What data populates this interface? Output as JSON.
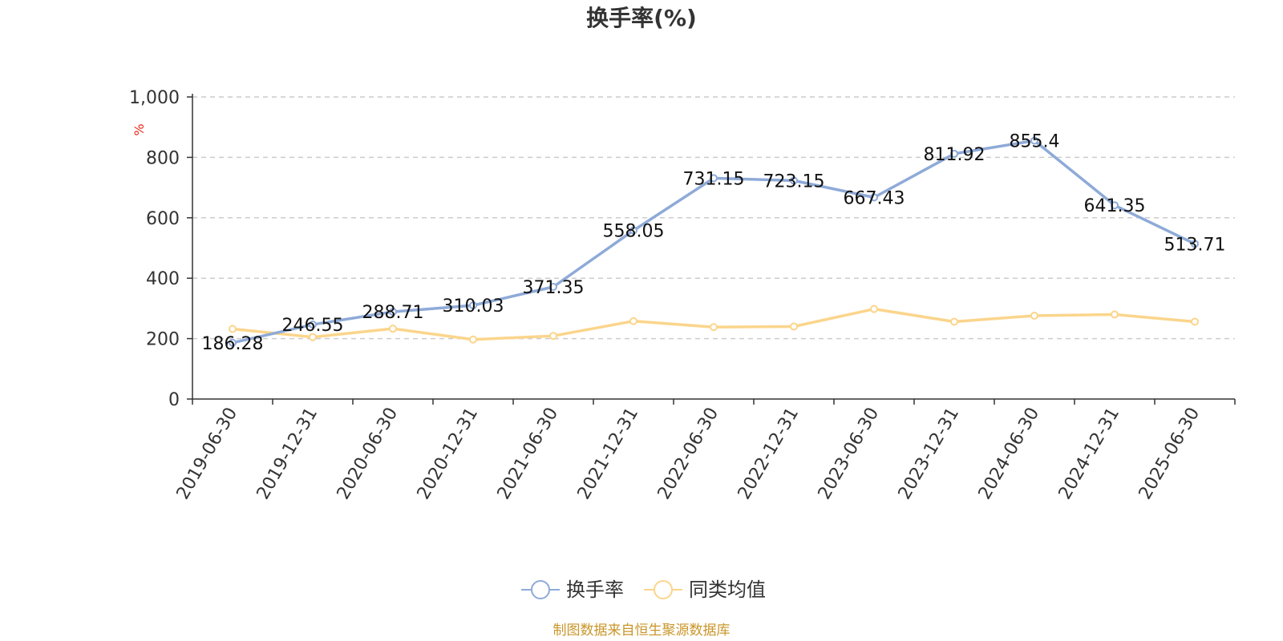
{
  "chart_data": {
    "type": "line",
    "title": "换手率(%)",
    "ylabel": "%",
    "ylim": [
      0,
      1000
    ],
    "yticks": [
      "0",
      "200",
      "400",
      "600",
      "800",
      "1,000"
    ],
    "grid": true,
    "legend_position": "bottom-center",
    "categories": [
      "2019-06-30",
      "2019-12-31",
      "2020-06-30",
      "2020-12-31",
      "2021-06-30",
      "2021-12-31",
      "2022-06-30",
      "2022-12-31",
      "2023-06-30",
      "2023-12-31",
      "2024-06-30",
      "2024-12-31",
      "2025-06-30"
    ],
    "series": [
      {
        "name": "换手率",
        "color": "#8eaad8",
        "values": [
          186.28,
          246.55,
          288.71,
          310.03,
          371.35,
          558.05,
          731.15,
          723.15,
          667.43,
          811.92,
          855.4,
          641.35,
          513.71
        ],
        "labels": [
          "186.28",
          "246.55",
          "288.71",
          "310.03",
          "371.35",
          "558.05",
          "731.15",
          "723.15",
          "667.43",
          "811.92",
          "855.4",
          "641.35",
          "513.71"
        ]
      },
      {
        "name": "同类均值",
        "color": "#fbd58c",
        "values": [
          232,
          205,
          233,
          197,
          209,
          258,
          238,
          240,
          298,
          256,
          276,
          280,
          256
        ]
      }
    ]
  },
  "source_note": "制图数据来自恒生聚源数据库"
}
